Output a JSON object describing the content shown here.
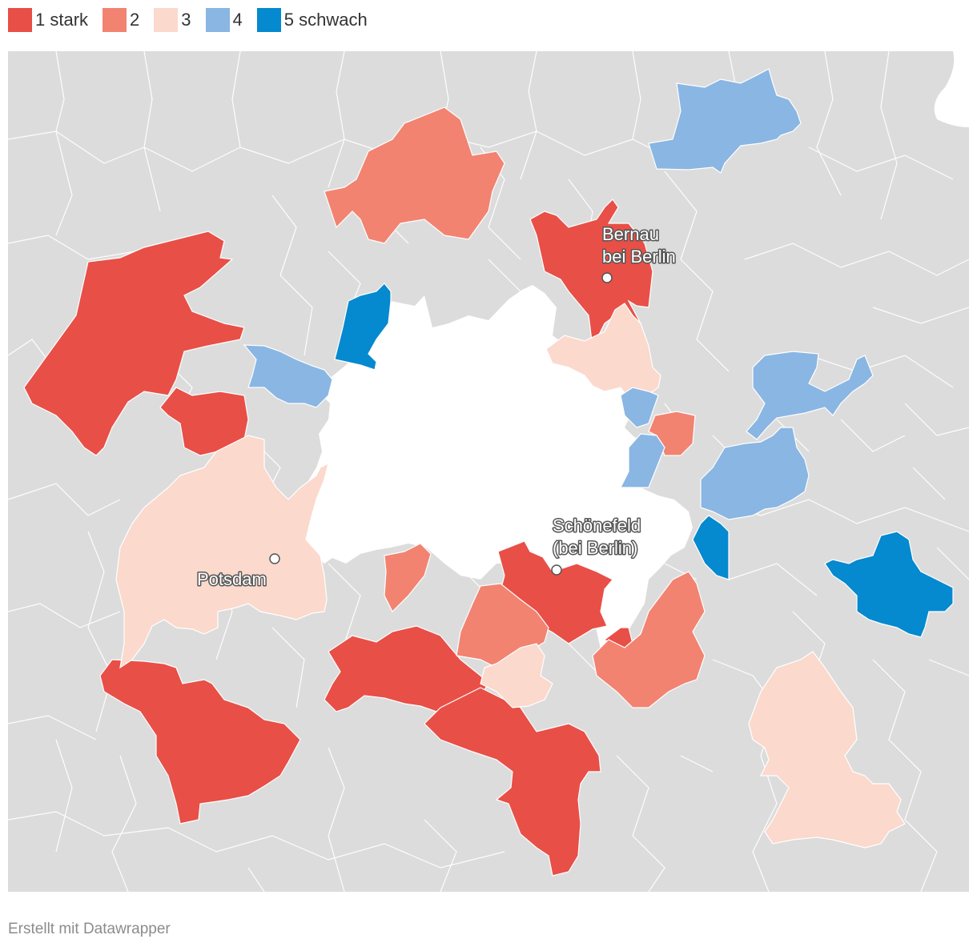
{
  "legend": [
    {
      "label": "1 stark",
      "color": "#e84f47"
    },
    {
      "label": "2",
      "color": "#f28371"
    },
    {
      "label": "3",
      "color": "#fbd9cd"
    },
    {
      "label": "4",
      "color": "#8ab6e3"
    },
    {
      "label": "5 schwach",
      "color": "#0589cf"
    }
  ],
  "map": {
    "background_color": "#dcdcdc",
    "berlin_color": "#ffffff",
    "border_color": "#ffffff",
    "cities": [
      {
        "line1": "Bernau",
        "line2": "bei Berlin"
      },
      {
        "line1": "Schönefeld",
        "line2": "(bei Berlin)"
      },
      {
        "line1": "Potsdam",
        "line2": ""
      }
    ]
  },
  "footer": "Erstellt mit Datawrapper"
}
